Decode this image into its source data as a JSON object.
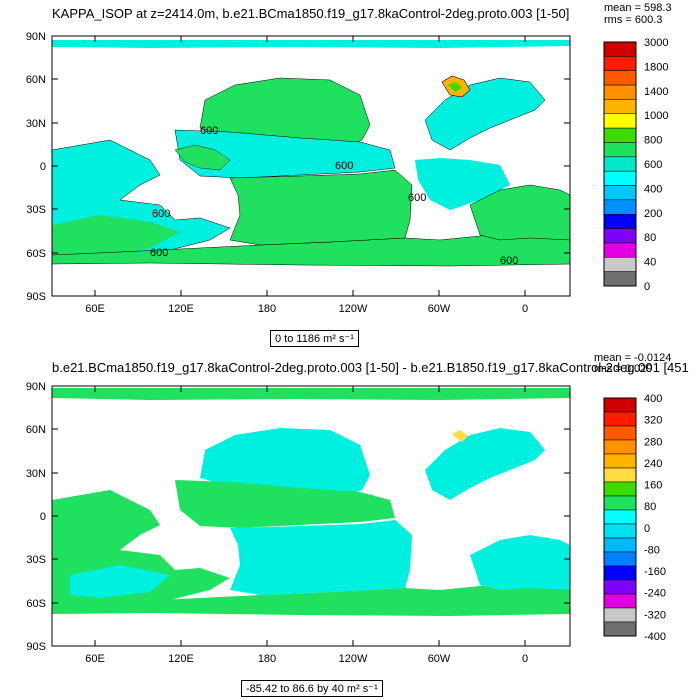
{
  "panel1": {
    "title": "KAPPA_ISOP at z=2414.0m, b.e21.BCma1850.f19_g17.8kaControl-2deg.proto.003 [1-50]",
    "mean": "mean = 598.3",
    "rms": "rms = 600.3",
    "range": "0 to 1186 m² s⁻¹",
    "contour_labels": [
      "600",
      "600",
      "600",
      "600",
      "600",
      "600"
    ],
    "colorbar_labels": [
      "3000",
      "1800",
      "1400",
      "1000",
      "800",
      "600",
      "400",
      "200",
      "80",
      "40",
      "0"
    ],
    "colorbar_colors": [
      "#d10000",
      "#ff1a00",
      "#ff5a00",
      "#ff9000",
      "#ffb400",
      "#ffff00",
      "#3cdc00",
      "#20e060",
      "#00e8c8",
      "#00ffff",
      "#00c8ff",
      "#0090ff",
      "#0000ff",
      "#8000ff",
      "#e000e0",
      "#c8c8c8",
      "#707070"
    ]
  },
  "panel2": {
    "title": "b.e21.BCma1850.f19_g17.8kaControl-2deg.proto.003 [1-50] - b.e21.B1850.f19_g17.8kaControl-2deg.001 [451",
    "mean": "mean = -0.0124",
    "rms": "rms = 0.029",
    "range": "-85.42 to 86.6 by 40 m² s⁻¹",
    "colorbar_labels": [
      "400",
      "320",
      "280",
      "240",
      "160",
      "80",
      "0",
      "-80",
      "-160",
      "-240",
      "-320",
      "-400"
    ],
    "colorbar_colors": [
      "#d10000",
      "#ff1a00",
      "#ff5a00",
      "#ff9000",
      "#ffb400",
      "#ffdc40",
      "#3cdc00",
      "#20e060",
      "#00ffff",
      "#00e0f0",
      "#00b8ff",
      "#0080ff",
      "#0000ff",
      "#8000ff",
      "#e000e0",
      "#c8c8c8",
      "#707070"
    ]
  },
  "axes": {
    "lat_labels": [
      "90N",
      "60N",
      "30N",
      "0",
      "30S",
      "60S",
      "90S"
    ],
    "lon_labels": [
      "60E",
      "120E",
      "180",
      "120W",
      "60W",
      "0"
    ]
  },
  "colors": {
    "ocean_green": "#20e060",
    "ocean_cyan": "#00f0e0",
    "land": "#ffffff"
  }
}
